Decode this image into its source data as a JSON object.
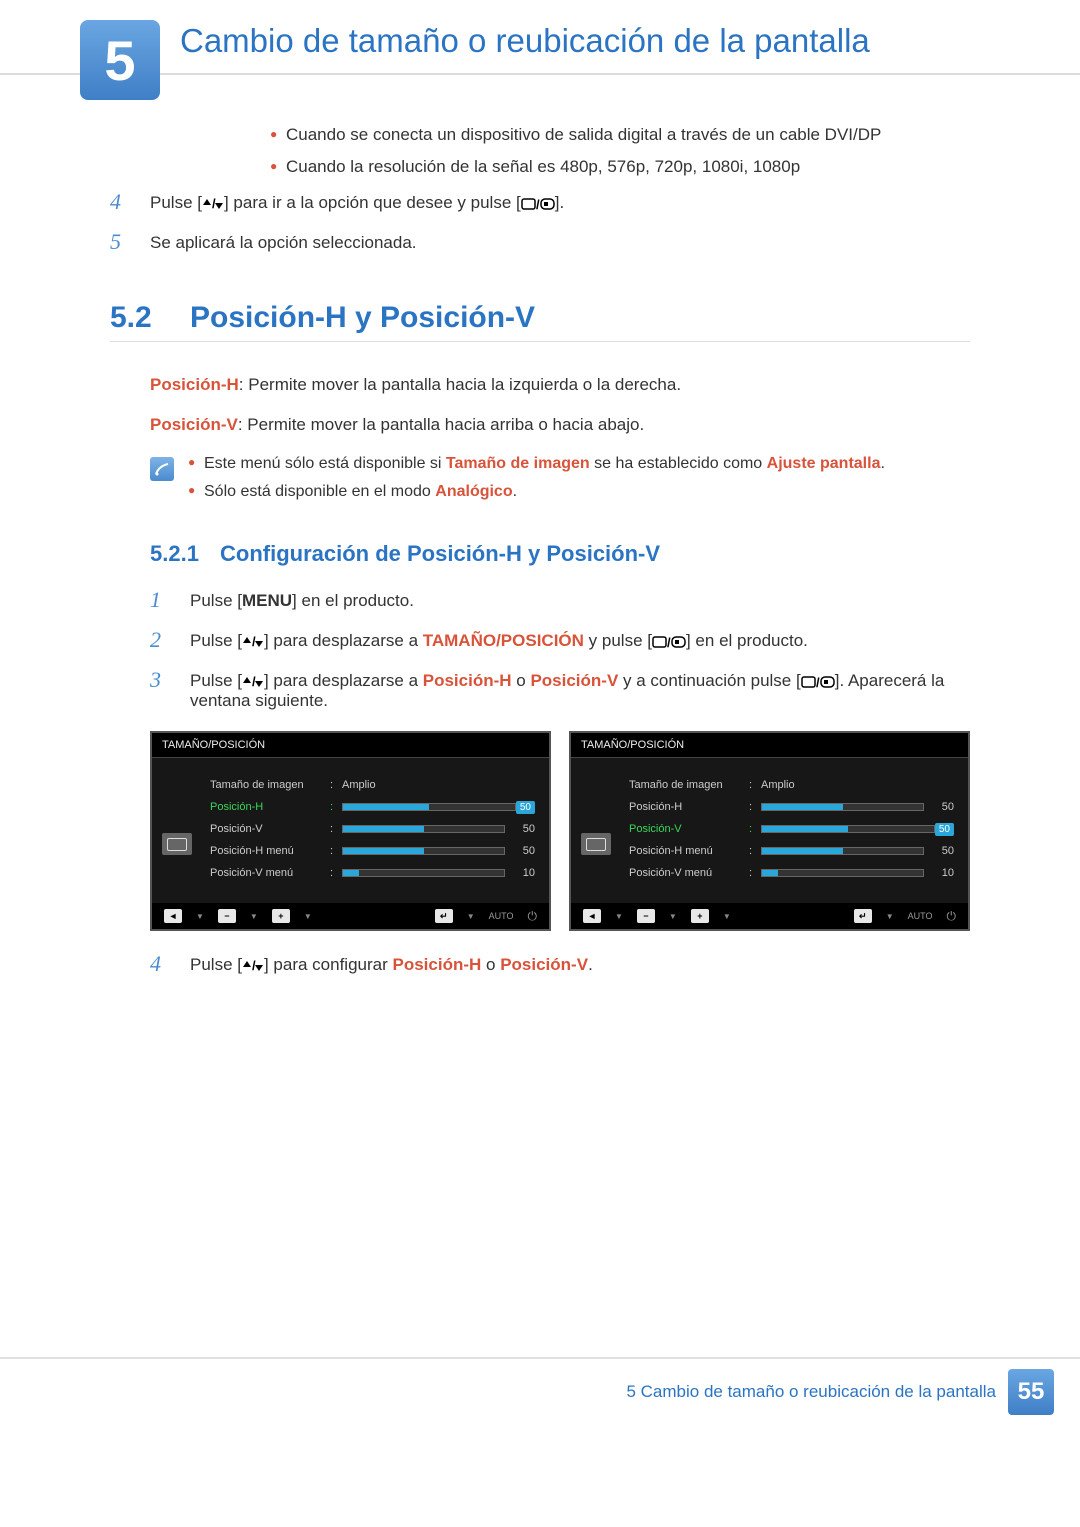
{
  "chapter": {
    "number": "5",
    "title": "Cambio de tamaño o reubicación de la pantalla"
  },
  "top_bullets": [
    "Cuando se conecta un dispositivo de salida digital a través de un cable DVI/DP",
    "Cuando la resolución de la señal es 480p, 576p, 720p, 1080i, 1080p"
  ],
  "top_steps": [
    {
      "n": "4",
      "pre": "Pulse [",
      "icons": "updown",
      "mid": "] para ir a la opción que desee y pulse [",
      "icons2": "screens",
      "post": "]."
    },
    {
      "n": "5",
      "text": "Se aplicará la opción seleccionada."
    }
  ],
  "section": {
    "num": "5.2",
    "title": "Posición-H y Posición-V"
  },
  "defs": [
    {
      "term": "Posición-H",
      "rest": ": Permite mover la pantalla hacia la izquierda o la derecha."
    },
    {
      "term": "Posición-V",
      "rest": ": Permite mover la pantalla hacia arriba o hacia abajo."
    }
  ],
  "notes": [
    {
      "parts": [
        "Este menú sólo está disponible si ",
        {
          "h": "Tamaño de imagen"
        },
        " se ha establecido como ",
        {
          "h": "Ajuste pantalla"
        },
        "."
      ]
    },
    {
      "parts": [
        "Sólo está disponible en el modo ",
        {
          "h": "Analógico"
        },
        "."
      ]
    }
  ],
  "subsection": {
    "num": "5.2.1",
    "title": "Configuración de Posición-H y Posición-V"
  },
  "steps2": [
    {
      "n": "1",
      "parts": [
        "Pulse [",
        {
          "b": "MENU"
        },
        "] en el producto."
      ]
    },
    {
      "n": "2",
      "parts": [
        "Pulse [",
        {
          "icon": "updown"
        },
        "] para desplazarse a ",
        {
          "h": "TAMAÑO/POSICIÓN"
        },
        " y pulse [",
        {
          "icon": "screens"
        },
        "] en el producto."
      ]
    },
    {
      "n": "3",
      "parts": [
        "Pulse [",
        {
          "icon": "updown"
        },
        "] para desplazarse a ",
        {
          "h": "Posición-H"
        },
        " o ",
        {
          "h": "Posición-V"
        },
        " y a continuación pulse [",
        {
          "icon": "screens"
        },
        "]. Aparecerá la ventana siguiente."
      ]
    }
  ],
  "osd": {
    "title": "TAMAÑO/POSICIÓN",
    "amplio": "Amplio",
    "panels": [
      {
        "active_row": 1,
        "rows": [
          {
            "label": "Tamaño de imagen",
            "mode": "text",
            "value": "Amplio"
          },
          {
            "label": "Posición-H",
            "mode": "bar",
            "fill": 50,
            "num": "50"
          },
          {
            "label": "Posición-V",
            "mode": "bar",
            "fill": 50,
            "num": "50"
          },
          {
            "label": "Posición-H menú",
            "mode": "bar",
            "fill": 50,
            "num": "50"
          },
          {
            "label": "Posición-V menú",
            "mode": "bar",
            "fill": 10,
            "num": "10"
          }
        ]
      },
      {
        "active_row": 2,
        "rows": [
          {
            "label": "Tamaño de imagen",
            "mode": "text",
            "value": "Amplio"
          },
          {
            "label": "Posición-H",
            "mode": "bar",
            "fill": 50,
            "num": "50"
          },
          {
            "label": "Posición-V",
            "mode": "bar",
            "fill": 50,
            "num": "50"
          },
          {
            "label": "Posición-H menú",
            "mode": "bar",
            "fill": 50,
            "num": "50"
          },
          {
            "label": "Posición-V menú",
            "mode": "bar",
            "fill": 10,
            "num": "10"
          }
        ]
      }
    ],
    "footer_auto": "AUTO"
  },
  "step4": {
    "n": "4",
    "parts": [
      "Pulse [",
      {
        "icon": "updown"
      },
      "] para configurar ",
      {
        "h": "Posición-H"
      },
      " o ",
      {
        "h": "Posición-V"
      },
      "."
    ]
  },
  "footer": {
    "left": "5 Cambio de tamaño o reubicación de la pantalla",
    "page": "55"
  },
  "colors": {
    "blue": "#2b74c3",
    "orange": "#d8533a",
    "osd_bg": "#171717",
    "osd_accent": "#2aa7d8",
    "osd_green": "#39d65a"
  }
}
